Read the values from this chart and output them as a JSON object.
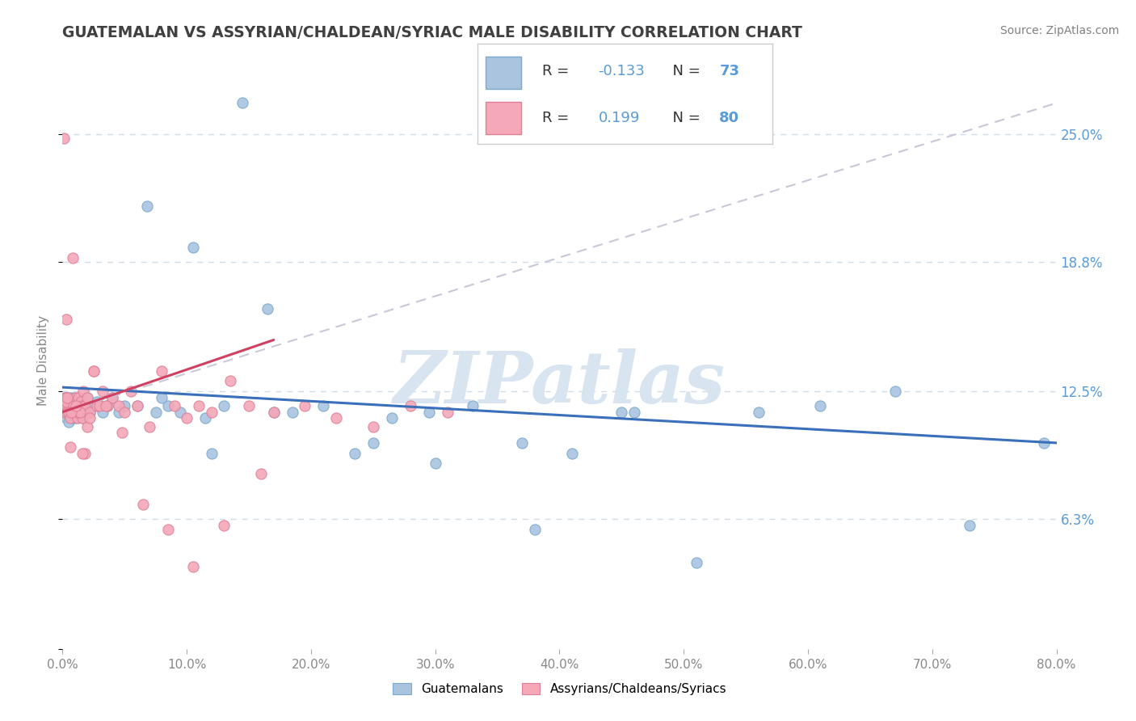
{
  "title": "GUATEMALAN VS ASSYRIAN/CHALDEAN/SYRIAC MALE DISABILITY CORRELATION CHART",
  "source": "Source: ZipAtlas.com",
  "ylabel": "Male Disability",
  "xlim": [
    0.0,
    0.8
  ],
  "ylim": [
    0.0,
    0.28
  ],
  "yticks": [
    0.0,
    0.063,
    0.125,
    0.188,
    0.25
  ],
  "ytick_labels": [
    "",
    "6.3%",
    "12.5%",
    "18.8%",
    "25.0%"
  ],
  "xticks": [
    0.0,
    0.1,
    0.2,
    0.3,
    0.4,
    0.5,
    0.6,
    0.7,
    0.8
  ],
  "xtick_labels": [
    "0.0%",
    "10.0%",
    "20.0%",
    "30.0%",
    "40.0%",
    "50.0%",
    "60.0%",
    "70.0%",
    "80.0%"
  ],
  "blue_color": "#aac4e0",
  "blue_edge": "#7aaace",
  "pink_color": "#f4a8b8",
  "pink_edge": "#e08098",
  "trend_blue_color": "#3a6fba",
  "trend_pink_color": "#d04060",
  "trend_gray_color": "#c8c8d8",
  "legend_R_blue": "-0.133",
  "legend_N_blue": "73",
  "legend_R_pink": "0.199",
  "legend_N_pink": "80",
  "blue_label": "Guatemalans",
  "pink_label": "Assyrians/Chaldeans/Syriacs",
  "watermark": "ZIPatlas",
  "watermark_color": "#d8e4f0",
  "grid_color": "#d0dce8",
  "background_color": "#ffffff",
  "title_color": "#404040",
  "source_color": "#808080",
  "tick_color": "#5b9bd5",
  "xtick_color": "#888888"
}
